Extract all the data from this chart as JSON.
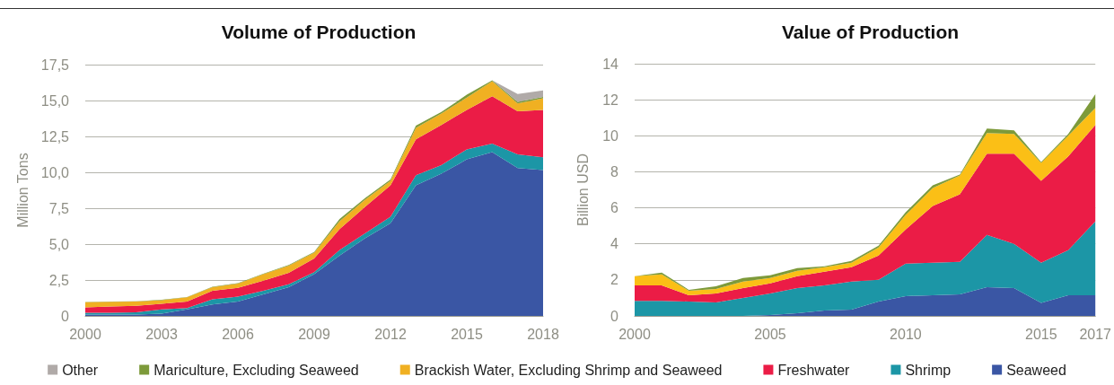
{
  "chart_data": [
    {
      "type": "area",
      "title": "Volume of Production",
      "ylabel": "Million Tons",
      "stacked": true,
      "grid": "y",
      "legend": "bottom",
      "marker": "none",
      "categories": [
        "2000",
        null,
        null,
        "2003",
        null,
        null,
        "2006",
        null,
        null,
        "2009",
        null,
        null,
        "2012",
        null,
        null,
        "2015",
        null,
        null,
        "2018"
      ],
      "ylim": [
        0,
        17.5
      ],
      "yticks": [
        0,
        {
          "value": 2.5,
          "label": "2,5"
        },
        {
          "value": 5,
          "label": "5,0"
        },
        {
          "value": 7.5,
          "label": "7,5"
        },
        {
          "value": 10,
          "label": "10,0"
        },
        {
          "value": 12.5,
          "label": "12,5"
        },
        {
          "value": 15,
          "label": "15,0"
        },
        {
          "value": 17.5,
          "label": "17,5"
        }
      ],
      "series": [
        {
          "name": "Seaweed",
          "color": "#3a56a4",
          "values": [
            0.1,
            0.1,
            0.1,
            0.15,
            0.45,
            0.8,
            1.0,
            1.5,
            2.0,
            2.9,
            4.2,
            5.4,
            6.45,
            9.1,
            9.9,
            10.9,
            11.4,
            10.3,
            10.15
          ]
        },
        {
          "name": "Shrimp",
          "color": "#1c96a6",
          "values": [
            0.12,
            0.12,
            0.15,
            0.3,
            0.1,
            0.35,
            0.35,
            0.25,
            0.2,
            0.15,
            0.4,
            0.35,
            0.45,
            0.7,
            0.6,
            0.7,
            0.6,
            0.95,
            0.9
          ]
        },
        {
          "name": "Freshwater",
          "color": "#eb1c46",
          "values": [
            0.38,
            0.43,
            0.45,
            0.4,
            0.45,
            0.6,
            0.6,
            0.7,
            0.8,
            0.95,
            1.45,
            1.85,
            2.2,
            2.5,
            2.8,
            2.75,
            3.3,
            3.0,
            3.3
          ]
        },
        {
          "name": "Brackish Water, Excluding Shrimp and Seaweed",
          "color": "#f0b022",
          "values": [
            0.35,
            0.33,
            0.3,
            0.25,
            0.3,
            0.25,
            0.3,
            0.45,
            0.5,
            0.4,
            0.55,
            0.5,
            0.3,
            0.8,
            0.8,
            0.85,
            1.05,
            0.55,
            0.8
          ]
        },
        {
          "name": "Mariculture, Excluding Seaweed",
          "color": "#7d9a3a",
          "values": [
            0.02,
            0.02,
            0.02,
            0.02,
            0.02,
            0.03,
            0.03,
            0.03,
            0.04,
            0.05,
            0.15,
            0.1,
            0.1,
            0.15,
            0.1,
            0.2,
            0.05,
            0.1,
            0.1
          ]
        },
        {
          "name": "Other",
          "color": "#b0aaa8",
          "values": [
            null,
            null,
            null,
            null,
            null,
            null,
            null,
            null,
            null,
            null,
            null,
            null,
            null,
            null,
            null,
            null,
            0,
            0.55,
            0.45
          ]
        }
      ]
    },
    {
      "type": "area",
      "title": "Value of Production",
      "ylabel": "Billion USD",
      "stacked": true,
      "grid": "y",
      "marker": "none",
      "categories": [
        "2000",
        null,
        null,
        null,
        null,
        "2005",
        null,
        null,
        null,
        null,
        "2010",
        null,
        null,
        null,
        null,
        "2015",
        null,
        "2017"
      ],
      "ylim": [
        0,
        14
      ],
      "yticks": [
        0,
        2,
        4,
        6,
        8,
        10,
        12,
        14
      ],
      "series": [
        {
          "color": "#3a56a4",
          "values": [
            0,
            0,
            0,
            0,
            0,
            0.05,
            0.15,
            0.3,
            0.35,
            0.8,
            1.1,
            1.15,
            1.2,
            1.6,
            1.55,
            0.72,
            1.15,
            1.15
          ]
        },
        {
          "color": "#1c96a6",
          "values": [
            0.83,
            0.83,
            0.8,
            0.75,
            1.0,
            1.2,
            1.4,
            1.4,
            1.55,
            1.2,
            1.8,
            1.8,
            1.8,
            2.9,
            2.45,
            2.23,
            2.5,
            4.1
          ]
        },
        {
          "color": "#eb1c46",
          "values": [
            0.87,
            0.87,
            0.35,
            0.5,
            0.55,
            0.55,
            0.65,
            0.75,
            0.8,
            1.35,
            1.9,
            3.15,
            3.75,
            4.5,
            5.0,
            4.55,
            5.2,
            5.35
          ]
        },
        {
          "color": "#fbbf16",
          "values": [
            0.5,
            0.6,
            0.25,
            0.25,
            0.35,
            0.3,
            0.3,
            0.25,
            0.25,
            0.45,
            0.8,
            1.0,
            1.05,
            1.15,
            1.1,
            1.0,
            1.15,
            0.95
          ]
        },
        {
          "color": "#7d9a3a",
          "values": [
            0,
            0.1,
            0.05,
            0.15,
            0.2,
            0.15,
            0.15,
            0.05,
            0.1,
            0.1,
            0.15,
            0.15,
            0.05,
            0.25,
            0.2,
            0.05,
            0.1,
            0.75
          ]
        }
      ]
    }
  ]
}
